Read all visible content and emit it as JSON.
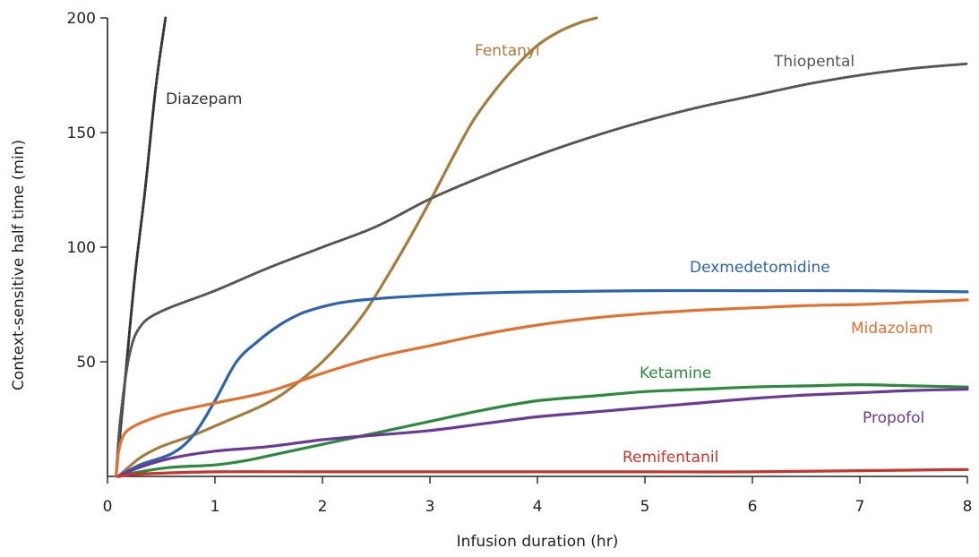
{
  "chart_data": {
    "type": "line",
    "title": "",
    "xlabel": "Infusion duration (hr)",
    "ylabel": "Context-sensitive half time (min)",
    "xlim": [
      0,
      8
    ],
    "ylim": [
      0,
      200
    ],
    "x_ticks": [
      0,
      1,
      2,
      3,
      4,
      5,
      6,
      7,
      8
    ],
    "y_ticks": [
      50,
      100,
      150,
      200
    ],
    "grid": false,
    "legend": "none (series labeled inline)",
    "series": [
      {
        "name": "Diazepam",
        "color": "#333333",
        "style": "dashed",
        "points": [
          [
            0.08,
            0
          ],
          [
            0.15,
            35
          ],
          [
            0.25,
            85
          ],
          [
            0.35,
            125
          ],
          [
            0.45,
            170
          ],
          [
            0.54,
            200
          ]
        ]
      },
      {
        "name": "Fentanyl",
        "color": "#a67c3d",
        "style": "solid",
        "points": [
          [
            0.1,
            0
          ],
          [
            0.3,
            8
          ],
          [
            0.5,
            13
          ],
          [
            0.8,
            18
          ],
          [
            1.1,
            24
          ],
          [
            1.4,
            30
          ],
          [
            1.6,
            35
          ],
          [
            1.8,
            42
          ],
          [
            2.0,
            50
          ],
          [
            2.2,
            60
          ],
          [
            2.4,
            72
          ],
          [
            2.6,
            87
          ],
          [
            2.8,
            103
          ],
          [
            3.0,
            120
          ],
          [
            3.2,
            138
          ],
          [
            3.4,
            155
          ],
          [
            3.6,
            168
          ],
          [
            3.8,
            179
          ],
          [
            4.0,
            188
          ],
          [
            4.2,
            194
          ],
          [
            4.4,
            198
          ],
          [
            4.55,
            200
          ]
        ]
      },
      {
        "name": "Thiopental",
        "color": "#555555",
        "style": "dotted",
        "points": [
          [
            0.08,
            0
          ],
          [
            0.12,
            25
          ],
          [
            0.2,
            52
          ],
          [
            0.3,
            65
          ],
          [
            0.5,
            72
          ],
          [
            1.0,
            81
          ],
          [
            1.5,
            91
          ],
          [
            2.0,
            100
          ],
          [
            2.5,
            109
          ],
          [
            3.0,
            121
          ],
          [
            3.5,
            131
          ],
          [
            4.0,
            140
          ],
          [
            4.5,
            148
          ],
          [
            5.0,
            155
          ],
          [
            5.5,
            161
          ],
          [
            6.0,
            166
          ],
          [
            6.5,
            171
          ],
          [
            7.0,
            175
          ],
          [
            7.5,
            178
          ],
          [
            8.0,
            180
          ]
        ]
      },
      {
        "name": "Dexmedetomidine",
        "color": "#2e63ad",
        "style": "solid",
        "points": [
          [
            0.1,
            0
          ],
          [
            0.3,
            5
          ],
          [
            0.6,
            10
          ],
          [
            0.8,
            18
          ],
          [
            1.0,
            33
          ],
          [
            1.2,
            50
          ],
          [
            1.4,
            59
          ],
          [
            1.6,
            66
          ],
          [
            1.8,
            71
          ],
          [
            2.0,
            74
          ],
          [
            2.2,
            76
          ],
          [
            2.5,
            77.5
          ],
          [
            3.0,
            79
          ],
          [
            3.5,
            80
          ],
          [
            4.0,
            80.5
          ],
          [
            5.0,
            81
          ],
          [
            6.0,
            81
          ],
          [
            7.0,
            81
          ],
          [
            8.0,
            80.5
          ]
        ]
      },
      {
        "name": "Midazolam",
        "color": "#e0712f",
        "style": "solid",
        "points": [
          [
            0.08,
            0
          ],
          [
            0.1,
            10
          ],
          [
            0.15,
            18
          ],
          [
            0.25,
            22
          ],
          [
            0.4,
            25
          ],
          [
            0.6,
            28
          ],
          [
            1.0,
            32
          ],
          [
            1.5,
            37
          ],
          [
            2.0,
            45
          ],
          [
            2.5,
            52
          ],
          [
            3.0,
            57
          ],
          [
            3.5,
            62
          ],
          [
            4.0,
            66
          ],
          [
            4.5,
            69
          ],
          [
            5.0,
            71
          ],
          [
            5.5,
            72.5
          ],
          [
            6.0,
            73.5
          ],
          [
            6.5,
            74.5
          ],
          [
            7.0,
            75
          ],
          [
            7.5,
            76
          ],
          [
            8.0,
            77
          ]
        ]
      },
      {
        "name": "Ketamine",
        "color": "#2b8a3e",
        "style": "solid",
        "points": [
          [
            0.1,
            0
          ],
          [
            0.3,
            2
          ],
          [
            0.6,
            4
          ],
          [
            1.0,
            5
          ],
          [
            1.3,
            7
          ],
          [
            1.6,
            10
          ],
          [
            2.0,
            14
          ],
          [
            2.5,
            19
          ],
          [
            3.0,
            24
          ],
          [
            3.5,
            29
          ],
          [
            4.0,
            33
          ],
          [
            4.5,
            35
          ],
          [
            5.0,
            37
          ],
          [
            5.5,
            38
          ],
          [
            6.0,
            39
          ],
          [
            6.5,
            39.5
          ],
          [
            7.0,
            40
          ],
          [
            7.5,
            39.5
          ],
          [
            8.0,
            39
          ]
        ]
      },
      {
        "name": "Propofol",
        "color": "#6b3a99",
        "style": "solid",
        "points": [
          [
            0.1,
            0
          ],
          [
            0.3,
            4
          ],
          [
            0.6,
            8
          ],
          [
            1.0,
            11
          ],
          [
            1.5,
            13
          ],
          [
            2.0,
            16
          ],
          [
            2.5,
            18
          ],
          [
            3.0,
            20
          ],
          [
            3.5,
            23
          ],
          [
            4.0,
            26
          ],
          [
            4.5,
            28
          ],
          [
            5.0,
            30
          ],
          [
            5.5,
            32
          ],
          [
            6.0,
            34
          ],
          [
            6.5,
            35.5
          ],
          [
            7.0,
            36.5
          ],
          [
            7.5,
            37.5
          ],
          [
            8.0,
            38
          ]
        ]
      },
      {
        "name": "Remifentanil",
        "color": "#c8342b",
        "style": "solid",
        "points": [
          [
            0.1,
            0
          ],
          [
            0.3,
            1
          ],
          [
            1.0,
            2
          ],
          [
            2.0,
            2
          ],
          [
            3.0,
            2
          ],
          [
            4.0,
            2
          ],
          [
            5.0,
            2
          ],
          [
            6.0,
            2
          ],
          [
            7.0,
            2.5
          ],
          [
            8.0,
            3
          ]
        ]
      }
    ]
  }
}
